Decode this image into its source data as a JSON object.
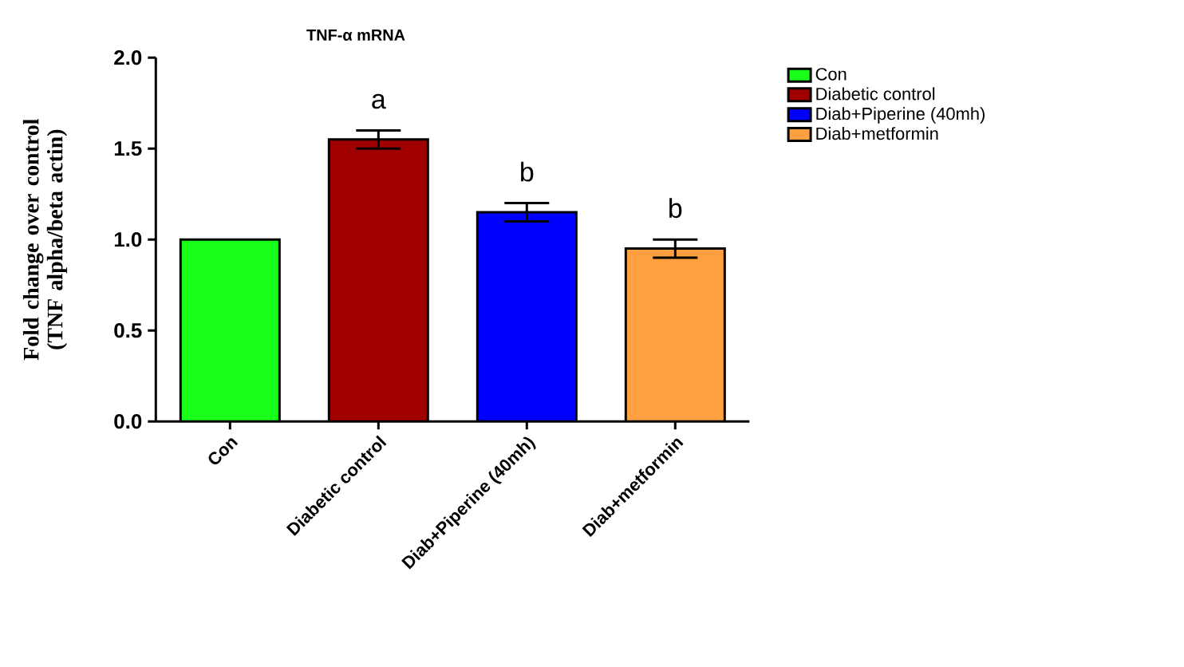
{
  "chart_data": {
    "type": "bar",
    "title": "TNF-α mRNA",
    "ylabel": "Fold change over control (TNF alpha/beta actin)",
    "categories": [
      "Con",
      "Diabetic control",
      "Diab+Piperine (40mh)",
      "Diab+metformin"
    ],
    "series": [
      {
        "name": "Con",
        "color": "#1aff1a",
        "values": [
          1.0,
          null,
          null,
          null
        ]
      },
      {
        "name": "Diabetic control",
        "color": "#a00000",
        "values": [
          null,
          1.55,
          null,
          null
        ],
        "errors": [
          null,
          0.05,
          null,
          null
        ]
      },
      {
        "name": "Diab+Piperine (40mh)",
        "color": "#0000ff",
        "values": [
          null,
          null,
          1.15,
          null
        ],
        "errors": [
          null,
          null,
          0.05,
          null
        ]
      },
      {
        "name": "Diab+metformin",
        "color": "#ffa040",
        "values": [
          null,
          null,
          null,
          0.95
        ],
        "errors": [
          null,
          null,
          null,
          0.05
        ]
      }
    ],
    "ylim": [
      0,
      2.0
    ],
    "yticks": [
      {
        "value": 0,
        "label": "0.0"
      },
      {
        "value": 0.5,
        "label": "0.5"
      },
      {
        "value": 1.0,
        "label": "1.0"
      },
      {
        "value": 1.5,
        "label": "1.5"
      },
      {
        "value": 2.0,
        "label": "2.0"
      }
    ],
    "legend": "right",
    "annotations": [
      "a",
      "b",
      "b"
    ]
  }
}
